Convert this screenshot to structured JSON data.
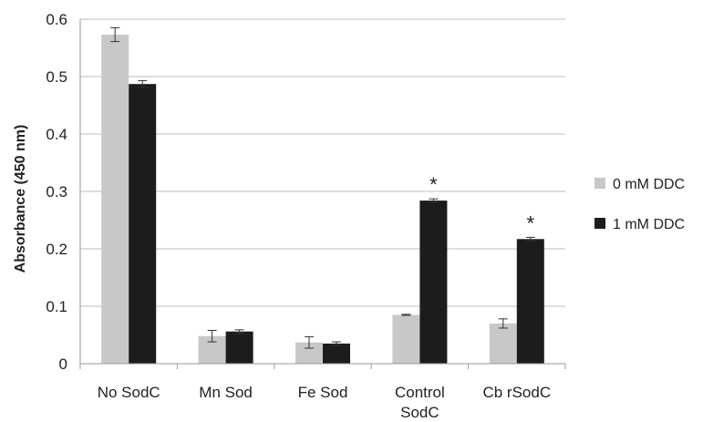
{
  "chart_data": {
    "type": "bar",
    "ylabel": "Absorbance (450 nm)",
    "xlabel": "",
    "ylim": [
      0,
      0.6
    ],
    "yticks": [
      "0",
      "0.1",
      "0.2",
      "0.3",
      "0.4",
      "0.5",
      "0.6"
    ],
    "grid": true,
    "legend_position": "right",
    "categories": [
      "No SodC",
      "Mn Sod",
      "Fe Sod",
      "Control SodC",
      "Cb rSodC"
    ],
    "series": [
      {
        "name": "0 mM DDC",
        "color": "#c8c8c8",
        "values": [
          0.573,
          0.048,
          0.037,
          0.085,
          0.07
        ],
        "errors": [
          0.012,
          0.01,
          0.01,
          0.001,
          0.008
        ]
      },
      {
        "name": "1 mM DDC",
        "color": "#1c1c1c",
        "values": [
          0.487,
          0.056,
          0.035,
          0.284,
          0.217
        ],
        "errors": [
          0.006,
          0.003,
          0.003,
          0.003,
          0.003
        ]
      }
    ],
    "annotations": [
      {
        "text": "*",
        "category": "Control SodC",
        "series": "1 mM DDC"
      },
      {
        "text": "*",
        "category": "Cb rSodC",
        "series": "1 mM DDC"
      }
    ]
  }
}
